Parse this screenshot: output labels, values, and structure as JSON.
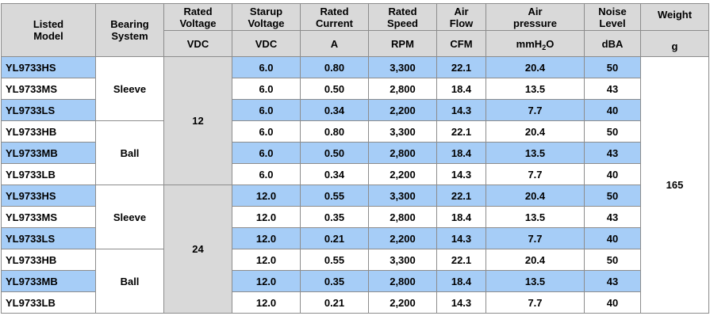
{
  "header": {
    "c0": [
      "Listed",
      "Model"
    ],
    "c1": [
      "Bearing",
      "System"
    ],
    "c2": [
      "Rated",
      "Voltage"
    ],
    "c3": [
      "Starup",
      "Voltage"
    ],
    "c4": [
      "Rated",
      "Current"
    ],
    "c5": [
      "Rated",
      "Speed"
    ],
    "c6": [
      "Air",
      "Flow"
    ],
    "c7": [
      "Air",
      "pressure"
    ],
    "c8": [
      "Noise",
      "Level"
    ],
    "c9": [
      "Weight"
    ]
  },
  "units": {
    "voltage": "VDC",
    "starup": "VDC",
    "current": "A",
    "speed": "RPM",
    "flow": "CFM",
    "pressure_base": "mmH",
    "pressure_sub": "2",
    "pressure_tail": "O",
    "noise": "dBA",
    "weight": "g"
  },
  "groups": {
    "sleeve_12": "Sleeve",
    "ball_12": "Ball",
    "sleeve_24": "Sleeve",
    "ball_24": "Ball",
    "voltage_12": "12",
    "voltage_24": "24",
    "weight": "165"
  },
  "rows": [
    {
      "model": "YL9733HS",
      "starup": "6.0",
      "current": "0.80",
      "speed": "3,300",
      "flow": "22.1",
      "pressure": "20.4",
      "noise": "50"
    },
    {
      "model": "YL9733MS",
      "starup": "6.0",
      "current": "0.50",
      "speed": "2,800",
      "flow": "18.4",
      "pressure": "13.5",
      "noise": "43"
    },
    {
      "model": "YL9733LS",
      "starup": "6.0",
      "current": "0.34",
      "speed": "2,200",
      "flow": "14.3",
      "pressure": "7.7",
      "noise": "40"
    },
    {
      "model": "YL9733HB",
      "starup": "6.0",
      "current": "0.80",
      "speed": "3,300",
      "flow": "22.1",
      "pressure": "20.4",
      "noise": "50"
    },
    {
      "model": "YL9733MB",
      "starup": "6.0",
      "current": "0.50",
      "speed": "2,800",
      "flow": "18.4",
      "pressure": "13.5",
      "noise": "43"
    },
    {
      "model": "YL9733LB",
      "starup": "6.0",
      "current": "0.34",
      "speed": "2,200",
      "flow": "14.3",
      "pressure": "7.7",
      "noise": "40"
    },
    {
      "model": "YL9733HS",
      "starup": "12.0",
      "current": "0.55",
      "speed": "3,300",
      "flow": "22.1",
      "pressure": "20.4",
      "noise": "50"
    },
    {
      "model": "YL9733MS",
      "starup": "12.0",
      "current": "0.35",
      "speed": "2,800",
      "flow": "18.4",
      "pressure": "13.5",
      "noise": "43"
    },
    {
      "model": "YL9733LS",
      "starup": "12.0",
      "current": "0.21",
      "speed": "2,200",
      "flow": "14.3",
      "pressure": "7.7",
      "noise": "40"
    },
    {
      "model": "YL9733HB",
      "starup": "12.0",
      "current": "0.55",
      "speed": "3,300",
      "flow": "22.1",
      "pressure": "20.4",
      "noise": "50"
    },
    {
      "model": "YL9733MB",
      "starup": "12.0",
      "current": "0.35",
      "speed": "2,800",
      "flow": "18.4",
      "pressure": "13.5",
      "noise": "43"
    },
    {
      "model": "YL9733LB",
      "starup": "12.0",
      "current": "0.21",
      "speed": "2,200",
      "flow": "14.3",
      "pressure": "7.7",
      "noise": "40"
    }
  ],
  "colors": {
    "header_gray": "#d9d9d9",
    "row_blue": "#a6cdf7",
    "row_white": "#ffffff"
  }
}
